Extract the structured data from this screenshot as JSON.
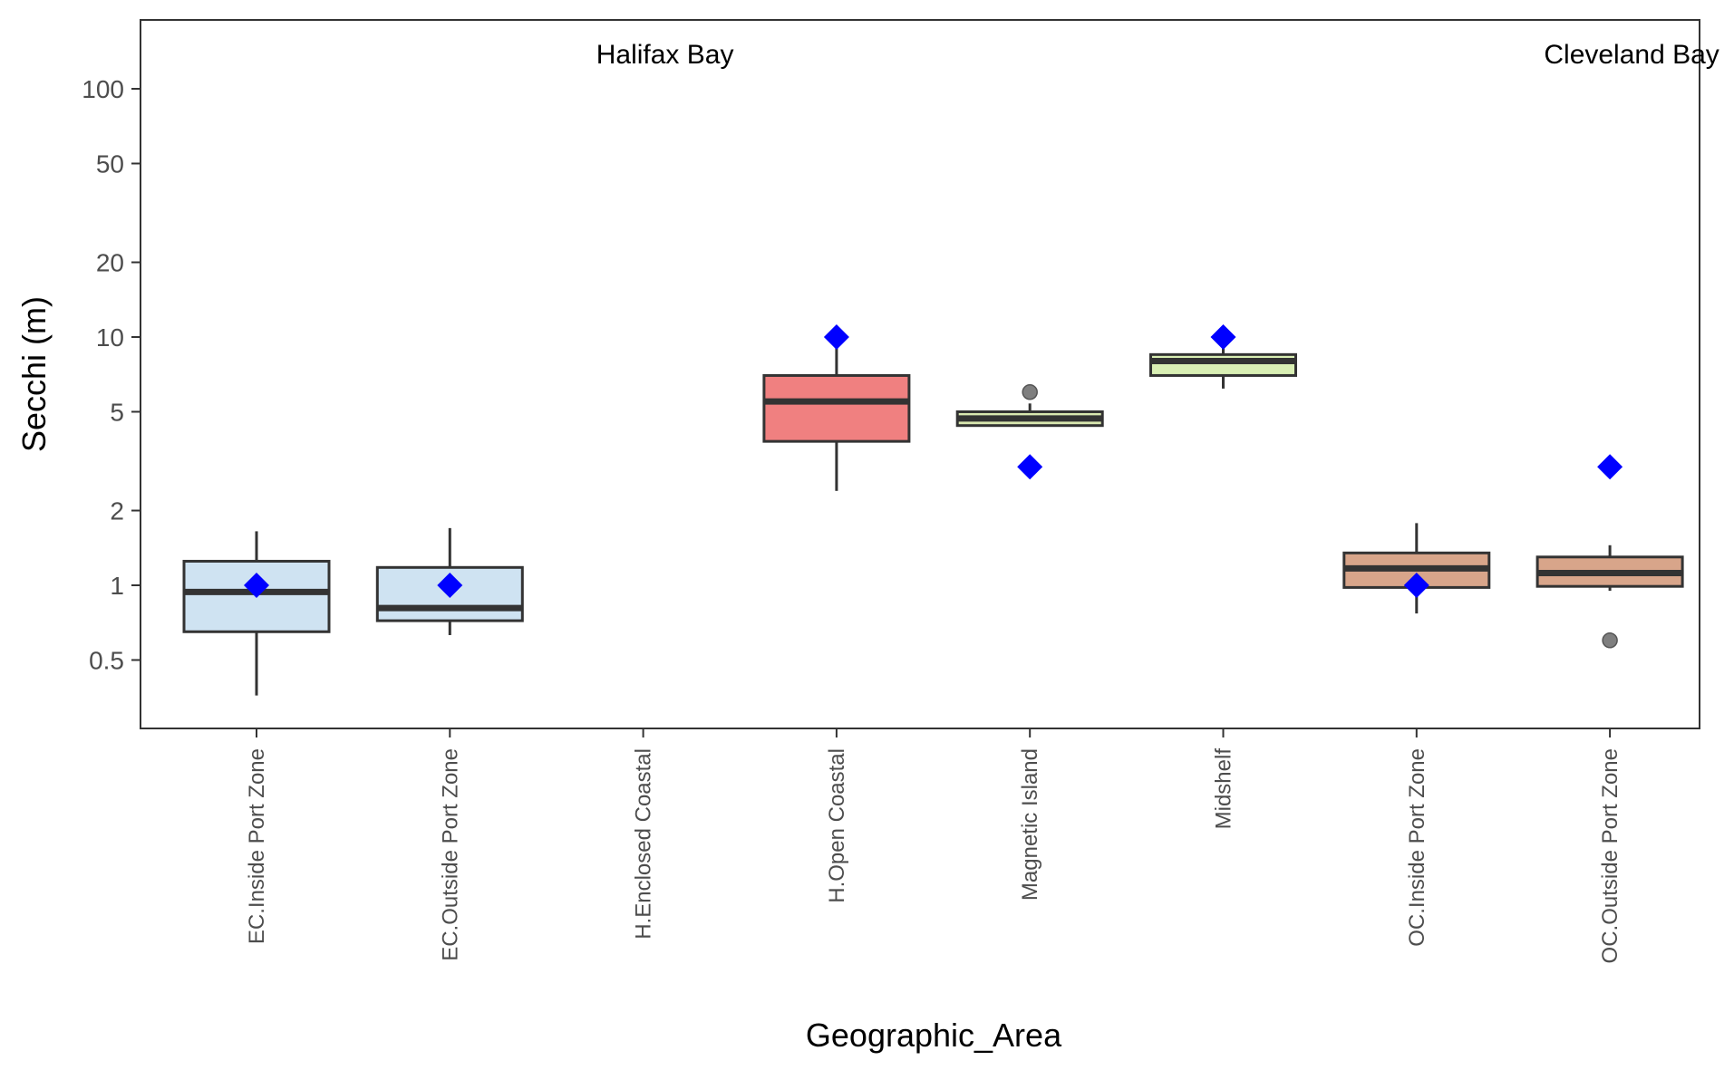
{
  "chart_data": {
    "type": "box",
    "title": "",
    "xlabel": "Geographic_Area",
    "ylabel": "Secchi (m)",
    "y_scale": "log",
    "ylim": [
      0.3,
      160
    ],
    "yticks": [
      0.5,
      1,
      2,
      5,
      10,
      20,
      50,
      100
    ],
    "ytick_labels": [
      "0.5",
      "1",
      "2",
      "5",
      "10",
      "20",
      "50",
      "100"
    ],
    "grid": false,
    "legend": "none",
    "categories": [
      "EC.Inside Port Zone",
      "EC.Outside Port Zone",
      "H.Enclosed Coastal",
      "H.Open Coastal",
      "Magnetic Island",
      "Midshelf",
      "OC.Inside Port Zone",
      "OC.Outside Port Zone"
    ],
    "annotations": [
      {
        "text": "Halifax Bay",
        "category_index": 2
      },
      {
        "text": "Cleveland Bay",
        "category_index": 7
      }
    ],
    "boxes": [
      {
        "category": "EC.Inside Port Zone",
        "whisker_low": 0.36,
        "q1": 0.65,
        "median": 0.94,
        "q3": 1.25,
        "whisker_high": 1.65,
        "outliers": [],
        "guideline": 1.0,
        "fill": "#cfe3f2"
      },
      {
        "category": "EC.Outside Port Zone",
        "whisker_low": 0.63,
        "q1": 0.72,
        "median": 0.81,
        "q3": 1.18,
        "whisker_high": 1.7,
        "outliers": [],
        "guideline": 1.0,
        "fill": "#cfe3f2"
      },
      {
        "category": "H.Enclosed Coastal",
        "whisker_low": null,
        "q1": null,
        "median": null,
        "q3": null,
        "whisker_high": null,
        "outliers": [],
        "guideline": null,
        "fill": "#f08080"
      },
      {
        "category": "H.Open Coastal",
        "whisker_low": 2.4,
        "q1": 3.8,
        "median": 5.5,
        "q3": 7.0,
        "whisker_high": 9.3,
        "outliers": [],
        "guideline": 10,
        "fill": "#f08080"
      },
      {
        "category": "Magnetic Island",
        "whisker_low": 4.4,
        "q1": 4.4,
        "median": 4.7,
        "q3": 5.0,
        "whisker_high": 5.4,
        "outliers": [
          6.0
        ],
        "guideline": 3.0,
        "fill": "#d9e8b0"
      },
      {
        "category": "Midshelf",
        "whisker_low": 6.2,
        "q1": 7.0,
        "median": 8.0,
        "q3": 8.5,
        "whisker_high": 9.4,
        "outliers": [],
        "guideline": 10,
        "fill": "#d9efb4"
      },
      {
        "category": "OC.Inside Port Zone",
        "whisker_low": 0.77,
        "q1": 0.98,
        "median": 1.17,
        "q3": 1.35,
        "whisker_high": 1.78,
        "outliers": [],
        "guideline": 1.0,
        "fill": "#d8a58a"
      },
      {
        "category": "OC.Outside Port Zone",
        "whisker_low": 0.95,
        "q1": 0.99,
        "median": 1.12,
        "q3": 1.3,
        "whisker_high": 1.45,
        "outliers": [
          0.6
        ],
        "guideline": 3.0,
        "fill": "#d8a58a"
      }
    ],
    "colors": {
      "box_stroke": "#333333",
      "guideline_marker": "#0000ff",
      "outlier": "#7f7f7f",
      "axis": "#333333"
    }
  }
}
